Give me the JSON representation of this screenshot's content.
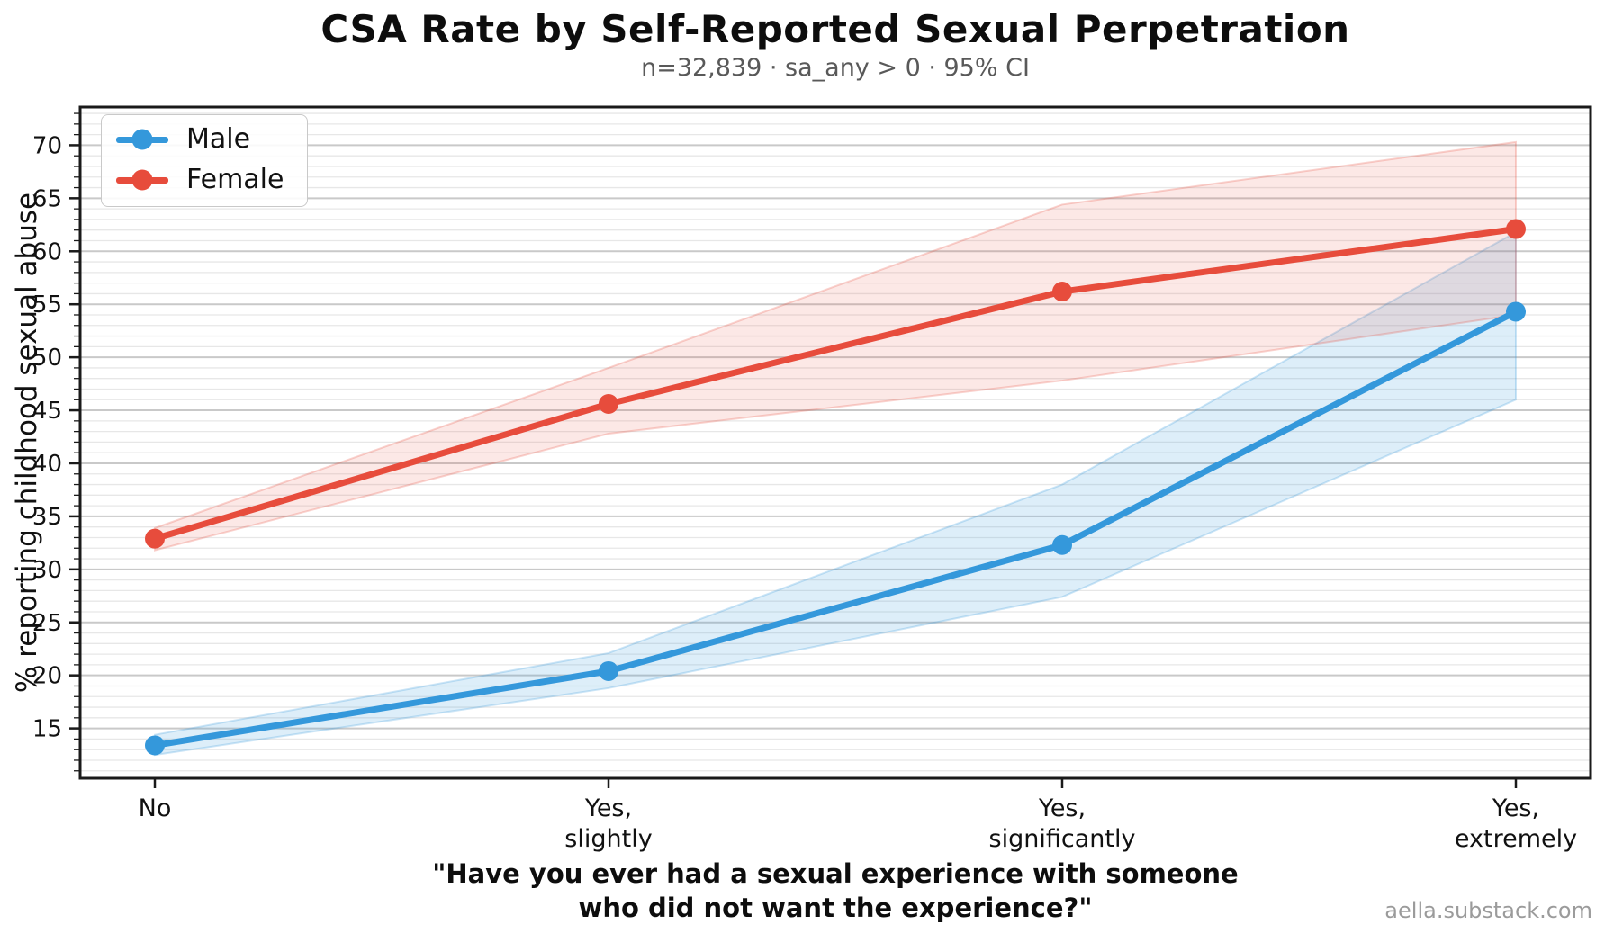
{
  "title": "CSA Rate by Self-Reported Sexual Perpetration",
  "subtitle": "n=32,839 · sa_any > 0 · 95% CI",
  "watermark": "aella.substack.com",
  "footer": {
    "line1": "\"Have you ever had a sexual experience with someone",
    "line2": "who did not want the experience?\""
  },
  "chart_data": {
    "type": "line",
    "title": "CSA Rate by Self-Reported Sexual Perpetration",
    "subtitle": "n=32,839 · sa_any > 0 · 95% CI",
    "xlabel": "\"Have you ever had a sexual experience with someone\nwho did not want the experience?\"",
    "ylabel": "% reporting childhood sexual abuse",
    "categories": [
      "No",
      "Yes,\nslightly",
      "Yes,\nsignificantly",
      "Yes,\nextremely"
    ],
    "y_ticks": [
      15,
      20,
      25,
      30,
      35,
      40,
      45,
      50,
      55,
      60,
      65,
      70
    ],
    "ylim": [
      10.3,
      73.6
    ],
    "grid": "major+minor",
    "minor_step": 1,
    "legend_position": "upper left",
    "ci_level": "95% CI",
    "series": [
      {
        "name": "Male",
        "color": "#3498db",
        "values": [
          13.4,
          20.4,
          32.3,
          54.3
        ],
        "ci_lower": [
          12.5,
          18.8,
          27.4,
          46.0
        ],
        "ci_upper": [
          14.4,
          22.1,
          38.0,
          61.8
        ]
      },
      {
        "name": "Female",
        "color": "#e74c3c",
        "values": [
          32.9,
          45.6,
          56.2,
          62.1
        ],
        "ci_lower": [
          31.8,
          42.8,
          47.8,
          54.0
        ],
        "ci_upper": [
          33.9,
          49.0,
          64.4,
          70.3
        ]
      }
    ]
  }
}
